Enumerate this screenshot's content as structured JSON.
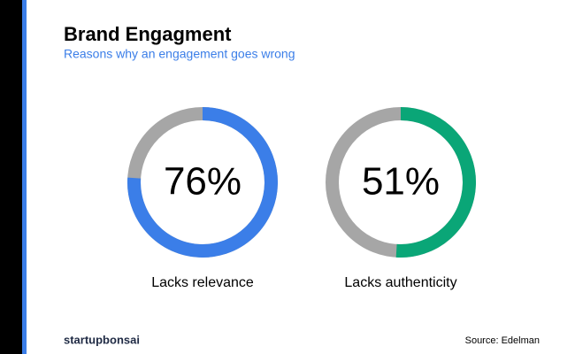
{
  "chart_data": {
    "type": "donut",
    "title": "Brand Engagment",
    "subtitle": "Reasons why an engagement goes wrong",
    "categories": [
      "Lacks relevance",
      "Lacks authenticity"
    ],
    "values": [
      76,
      51
    ],
    "value_labels": [
      "76%",
      "51%"
    ],
    "colors": [
      "#3b7ee8",
      "#0aa677"
    ],
    "remainder_color": "#a6a6a6",
    "brand": "startupbonsai",
    "source": "Source: Edelman"
  }
}
